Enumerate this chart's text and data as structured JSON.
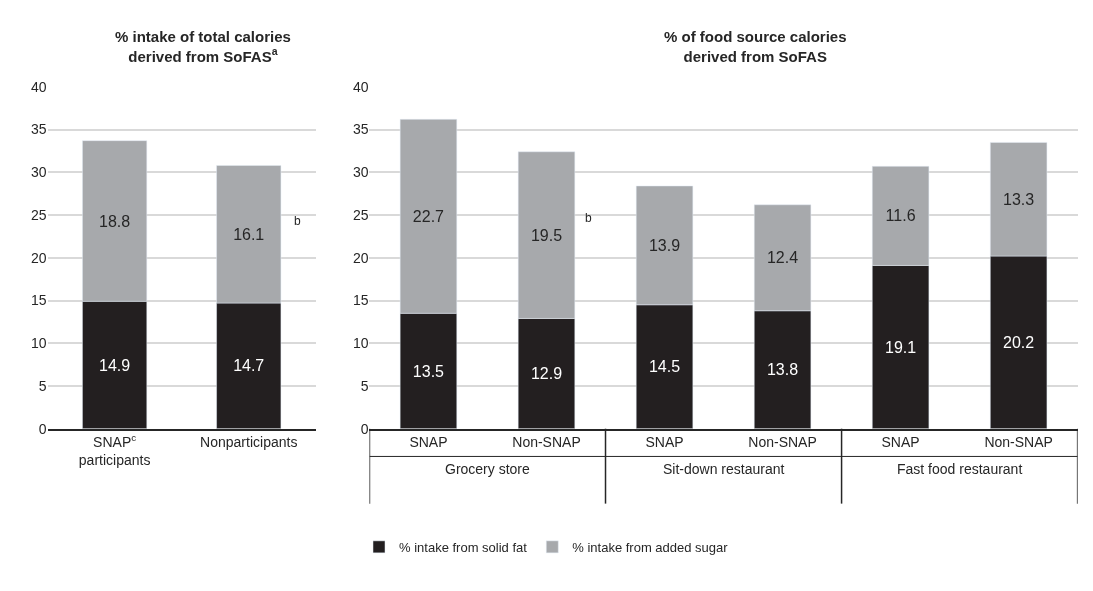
{
  "chart_data": [
    {
      "type": "bar",
      "stacked": true,
      "title": "% intake of total calories\nderived from SoFAS$^{a}$",
      "categories": [
        "SNAP$^{c}$\nparticipants",
        "Nonparticipants"
      ],
      "series": [
        {
          "name": "% intake from solid fat",
          "color": "#231f20",
          "values": [
            14.9,
            14.7
          ]
        },
        {
          "name": "% intake from added sugar",
          "color": "#a7a9ac",
          "values": [
            18.8,
            16.1
          ]
        }
      ],
      "data_labels": true,
      "ylim": [
        0,
        40
      ],
      "yticks": [
        0,
        5,
        10,
        15,
        20,
        25,
        30,
        35,
        40
      ],
      "grid": "y",
      "legend": "bottom",
      "annotations": [
        "b"
      ]
    },
    {
      "type": "bar",
      "stacked": true,
      "title": "% of food source calories\nderived from SoFAS",
      "categories": [
        "SNAP",
        "Non-SNAP",
        "SNAP",
        "Non-SNAP",
        "SNAP",
        "Non-SNAP"
      ],
      "series": [
        {
          "color": "#231f20",
          "values": [
            13.5,
            12.9,
            14.5,
            13.8,
            19.1,
            20.2
          ]
        },
        {
          "color": "#a7a9ac",
          "values": [
            22.7,
            19.5,
            13.9,
            12.4,
            11.6,
            13.3
          ]
        }
      ],
      "data_labels": true,
      "ylim": [
        0,
        40
      ],
      "yticks": [
        0,
        5,
        10,
        15,
        20,
        25,
        30,
        35,
        40
      ],
      "grid": "y",
      "annotations": [
        "b",
        "Grocery store",
        "Sit-down restaurant",
        "Fast food restaurant"
      ]
    }
  ]
}
